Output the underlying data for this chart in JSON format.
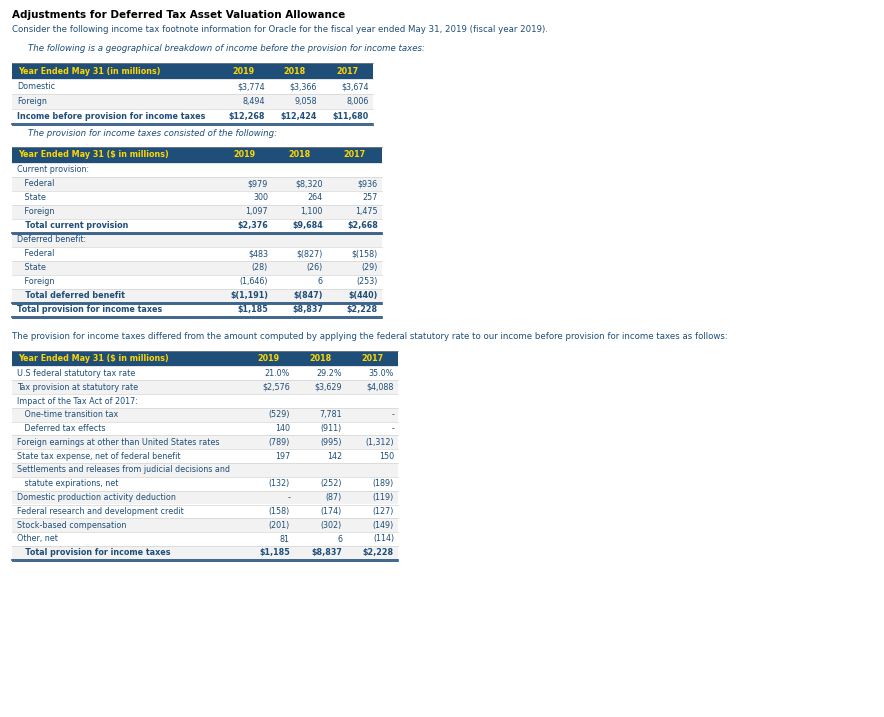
{
  "title": "Adjustments for Deferred Tax Asset Valuation Allowance",
  "subtitle": "Consider the following income tax footnote information for Oracle for the fiscal year ended May 31, 2019 (fiscal year 2019).",
  "header_color": "#1F4E79",
  "header_text_color": "#FFD700",
  "body_text_color": "#1F4E79",
  "bg_color": "#FFFFFF",
  "table1_intro": "The following is a geographical breakdown of income before the provision for income taxes:",
  "table1_header": [
    "Year Ended May 31 (in millions)",
    "2019",
    "2018",
    "2017"
  ],
  "table1_rows": [
    [
      "Domestic",
      "$3,774",
      "$3,366",
      "$3,674"
    ],
    [
      "Foreign",
      "8,494",
      "9,058",
      "8,006"
    ],
    [
      "Income before provision for income taxes",
      "$12,268",
      "$12,424",
      "$11,680"
    ]
  ],
  "table2_intro": "The provision for income taxes consisted of the following:",
  "table2_header": [
    "Year Ended May 31 ($ in millions)",
    "2019",
    "2018",
    "2017"
  ],
  "table2_rows": [
    [
      "Current provision:",
      "",
      "",
      ""
    ],
    [
      "   Federal",
      "$979",
      "$8,320",
      "$936"
    ],
    [
      "   State",
      "300",
      "264",
      "257"
    ],
    [
      "   Foreign",
      "1,097",
      "1,100",
      "1,475"
    ],
    [
      "   Total current provision",
      "$2,376",
      "$9,684",
      "$2,668"
    ],
    [
      "Deferred benefit:",
      "",
      "",
      ""
    ],
    [
      "   Federal",
      "$483",
      "$(827)",
      "$(158)"
    ],
    [
      "   State",
      "(28)",
      "(26)",
      "(29)"
    ],
    [
      "   Foreign",
      "(1,646)",
      "6",
      "(253)"
    ],
    [
      "   Total deferred benefit",
      "$(1,191)",
      "$(847)",
      "$(440)"
    ],
    [
      "Total provision for income taxes",
      "$1,185",
      "$8,837",
      "$2,228"
    ]
  ],
  "table2_bold_rows": [
    4,
    9,
    10
  ],
  "table3_intro": "The provision for income taxes differed from the amount computed by applying the federal statutory rate to our income before provision for income taxes as follows:",
  "table3_header": [
    "Year Ended May 31 ($ in millions)",
    "2019",
    "2018",
    "2017"
  ],
  "table3_rows": [
    [
      "U.S federal statutory tax rate",
      "21.0%",
      "29.2%",
      "35.0%"
    ],
    [
      "Tax provision at statutory rate",
      "$2,576",
      "$3,629",
      "$4,088"
    ],
    [
      "Impact of the Tax Act of 2017:",
      "",
      "",
      ""
    ],
    [
      "   One-time transition tax",
      "(529)",
      "7,781",
      "-"
    ],
    [
      "   Deferred tax effects",
      "140",
      "(911)",
      "-"
    ],
    [
      "Foreign earnings at other than United States rates",
      "(789)",
      "(995)",
      "(1,312)"
    ],
    [
      "State tax expense, net of federal benefit",
      "197",
      "142",
      "150"
    ],
    [
      "Settlements and releases from judicial decisions and",
      "",
      "",
      ""
    ],
    [
      "   statute expirations, net",
      "(132)",
      "(252)",
      "(189)"
    ],
    [
      "Domestic production activity deduction",
      "-",
      "(87)",
      "(119)"
    ],
    [
      "Federal research and development credit",
      "(158)",
      "(174)",
      "(127)"
    ],
    [
      "Stock-based compensation",
      "(201)",
      "(302)",
      "(149)"
    ],
    [
      "Other, net",
      "81",
      "6",
      "(114)"
    ],
    [
      "   Total provision for income taxes",
      "$1,185",
      "$8,837",
      "$2,228"
    ]
  ],
  "table3_bold_rows": [
    13
  ],
  "fig_width": 8.84,
  "fig_height": 7.17,
  "dpi": 100
}
